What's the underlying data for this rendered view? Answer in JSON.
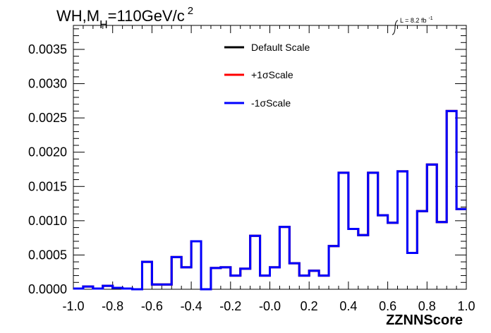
{
  "chart_data": {
    "type": "line",
    "drawstyle": "step",
    "title_parts": {
      "main": "WH,M",
      "sub": "H",
      "rest": "=110GeV/c",
      "sup": "2"
    },
    "lumi_label": "L = 8.2 fb",
    "lumi_sup": "-1",
    "xlabel": "ZZNNScore",
    "ylabel": "",
    "xlim": [
      -1.0,
      1.0
    ],
    "ylim": [
      0,
      0.00385
    ],
    "xticks": [
      "-1.0",
      "-0.8",
      "-0.6",
      "-0.4",
      "-0.2",
      "-0.0",
      "0.2",
      "0.4",
      "0.6",
      "0.8",
      "1.0"
    ],
    "yticks": [
      "0.0000",
      "0.0005",
      "0.0010",
      "0.0015",
      "0.0020",
      "0.0025",
      "0.0030",
      "0.0035"
    ],
    "bin_edges": [
      -1.0,
      -0.95,
      -0.9,
      -0.85,
      -0.8,
      -0.75,
      -0.7,
      -0.65,
      -0.6,
      -0.55,
      -0.5,
      -0.45,
      -0.4,
      -0.35,
      -0.3,
      -0.25,
      -0.2,
      -0.15,
      -0.1,
      -0.05,
      0.0,
      0.05,
      0.1,
      0.15,
      0.2,
      0.25,
      0.3,
      0.35,
      0.4,
      0.45,
      0.5,
      0.55,
      0.6,
      0.65,
      0.7,
      0.75,
      0.8,
      0.85,
      0.9,
      0.95,
      1.0
    ],
    "values": [
      1e-05,
      4e-05,
      1e-05,
      5e-05,
      2e-05,
      1e-05,
      0.0,
      0.0004,
      7e-05,
      7e-05,
      0.00047,
      0.00032,
      0.0007,
      0.0,
      0.00031,
      0.00032,
      0.0002,
      0.0003,
      0.00078,
      0.0002,
      0.00032,
      0.00091,
      0.00038,
      0.0002,
      0.00027,
      0.0002,
      0.00063,
      0.0017,
      0.00088,
      0.00079,
      0.0017,
      0.00108,
      0.00097,
      0.00172,
      0.00053,
      0.00114,
      0.00182,
      0.00098,
      0.0026,
      0.00117
    ],
    "series": [
      {
        "name": "Default Scale",
        "color": "#000000"
      },
      {
        "name": "+1σScale",
        "color": "#ff0000"
      },
      {
        "name": "-1σScale",
        "color": "#0000ff"
      }
    ],
    "legend_position": "top-center",
    "grid": false
  }
}
